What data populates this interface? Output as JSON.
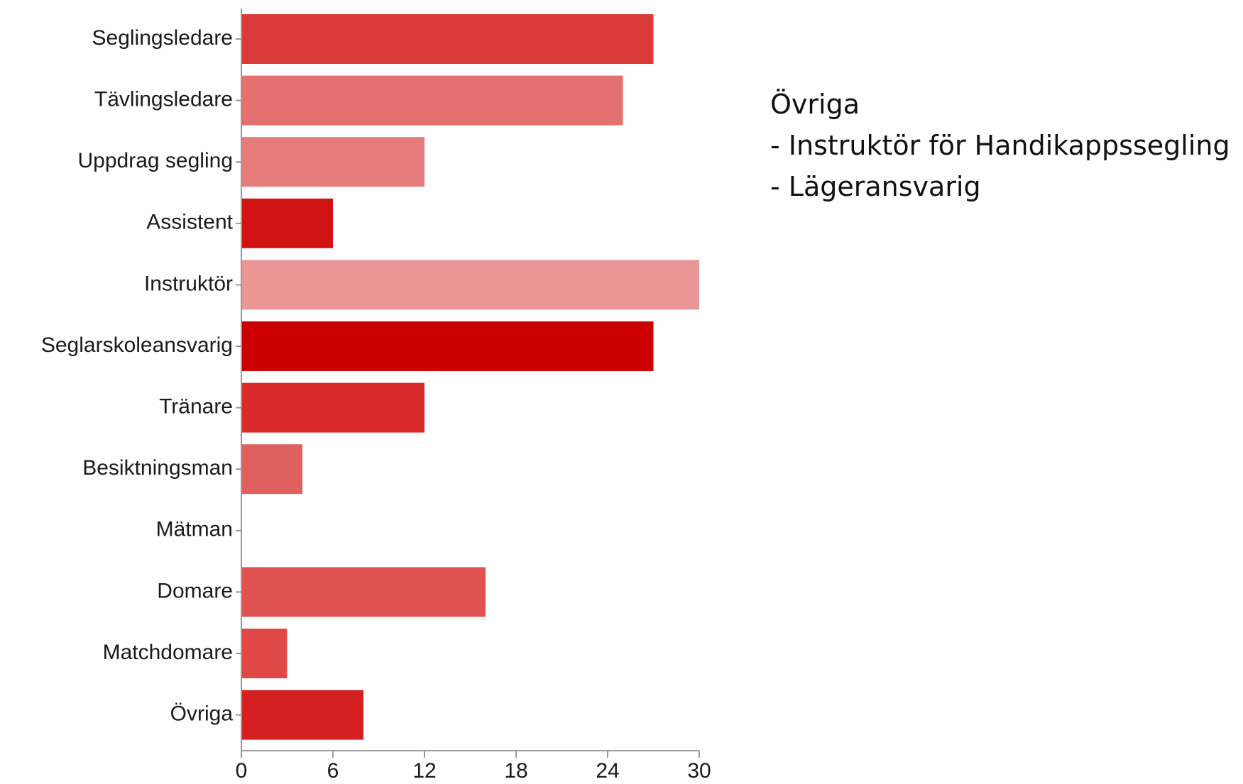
{
  "chart_data": {
    "type": "bar",
    "orientation": "horizontal",
    "categories": [
      "Seglingsledare",
      "Tävlingsledare",
      "Uppdrag segling",
      "Assistent",
      "Instruktör",
      "Seglarskoleansvarig",
      "Tränare",
      "Besiktningsman",
      "Mätman",
      "Domare",
      "Matchdomare",
      "Övriga"
    ],
    "values": [
      27,
      25,
      12,
      6,
      30,
      27,
      12,
      4,
      0,
      16,
      3,
      8
    ],
    "colors": [
      "#d93a3a",
      "#e57070",
      "#e57b7b",
      "#d01414",
      "#eb9696",
      "#cc0000",
      "#d92b2b",
      "#e06060",
      "#e06060",
      "#df5252",
      "#e04848",
      "#d42020"
    ],
    "xticks": [
      0,
      6,
      12,
      18,
      24,
      30
    ],
    "xlim": [
      0,
      30
    ],
    "grid": false,
    "title": "",
    "xlabel": "",
    "ylabel": ""
  },
  "note": {
    "heading": "Övriga",
    "items": [
      "- Instruktör för Handikappssegling",
      "- Lägeransvarig"
    ]
  }
}
